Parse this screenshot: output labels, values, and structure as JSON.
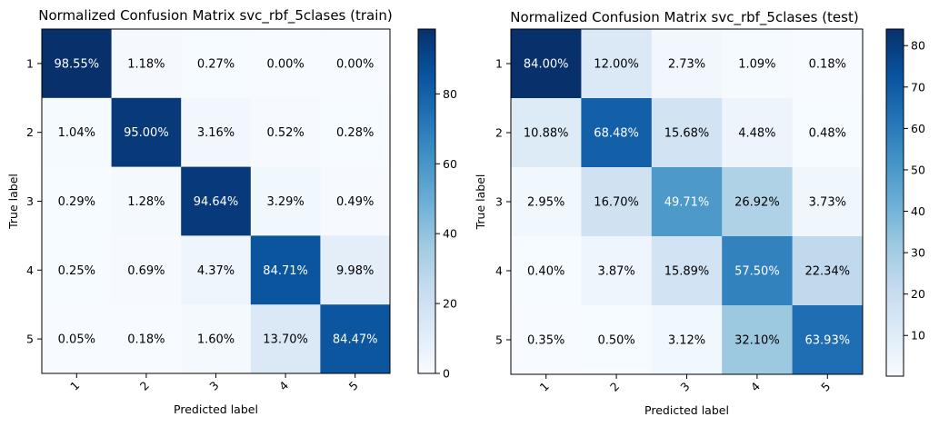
{
  "chart_data": [
    {
      "type": "heatmap",
      "title": "Normalized Confusion Matrix svc_rbf_5clases (train)",
      "xlabel": "Predicted label",
      "ylabel": "True label",
      "x_categories": [
        "1",
        "2",
        "3",
        "4",
        "5"
      ],
      "y_categories": [
        "1",
        "2",
        "3",
        "4",
        "5"
      ],
      "values": [
        [
          98.55,
          1.18,
          0.27,
          0.0,
          0.0
        ],
        [
          1.04,
          95.0,
          3.16,
          0.52,
          0.28
        ],
        [
          0.29,
          1.28,
          94.64,
          3.29,
          0.49
        ],
        [
          0.25,
          0.69,
          4.37,
          84.71,
          9.98
        ],
        [
          0.05,
          0.18,
          1.6,
          13.7,
          84.47
        ]
      ],
      "cell_labels": [
        [
          "98.55%",
          "1.18%",
          "0.27%",
          "0.00%",
          "0.00%"
        ],
        [
          "1.04%",
          "95.00%",
          "3.16%",
          "0.52%",
          "0.28%"
        ],
        [
          "0.29%",
          "1.28%",
          "94.64%",
          "3.29%",
          "0.49%"
        ],
        [
          "0.25%",
          "0.69%",
          "4.37%",
          "84.71%",
          "9.98%"
        ],
        [
          "0.05%",
          "0.18%",
          "1.60%",
          "13.70%",
          "84.47%"
        ]
      ],
      "colormap": "Blues",
      "vmin": 0,
      "vmax": 98.55,
      "colorbar_ticks": [
        0,
        20,
        40,
        60,
        80
      ],
      "colorbar_tick_labels": [
        "0",
        "20",
        "40",
        "60",
        "80"
      ]
    },
    {
      "type": "heatmap",
      "title": "Normalized Confusion Matrix svc_rbf_5clases (test)",
      "xlabel": "Predicted label",
      "ylabel": "True label",
      "x_categories": [
        "1",
        "2",
        "3",
        "4",
        "5"
      ],
      "y_categories": [
        "1",
        "2",
        "3",
        "4",
        "5"
      ],
      "values": [
        [
          84.0,
          12.0,
          2.73,
          1.09,
          0.18
        ],
        [
          10.88,
          68.48,
          15.68,
          4.48,
          0.48
        ],
        [
          2.95,
          16.7,
          49.71,
          26.92,
          3.73
        ],
        [
          0.4,
          3.87,
          15.89,
          57.5,
          22.34
        ],
        [
          0.35,
          0.5,
          3.12,
          32.1,
          63.93
        ]
      ],
      "cell_labels": [
        [
          "84.00%",
          "12.00%",
          "2.73%",
          "1.09%",
          "0.18%"
        ],
        [
          "10.88%",
          "68.48%",
          "15.68%",
          "4.48%",
          "0.48%"
        ],
        [
          "2.95%",
          "16.70%",
          "49.71%",
          "26.92%",
          "3.73%"
        ],
        [
          "0.40%",
          "3.87%",
          "15.89%",
          "57.50%",
          "22.34%"
        ],
        [
          "0.35%",
          "0.50%",
          "3.12%",
          "32.10%",
          "63.93%"
        ]
      ],
      "colormap": "Blues",
      "vmin": 0.18,
      "vmax": 84.0,
      "colorbar_ticks": [
        10,
        20,
        30,
        40,
        50,
        60,
        70,
        80
      ],
      "colorbar_tick_labels": [
        "10",
        "20",
        "30",
        "40",
        "50",
        "60",
        "70",
        "80"
      ]
    }
  ]
}
